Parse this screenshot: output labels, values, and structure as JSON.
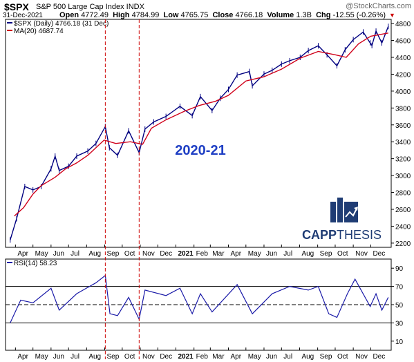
{
  "header": {
    "symbol": "$SPX",
    "name": "S&P 500 Large Cap Index INDX",
    "brand": "@StockCharts.com",
    "date": "31-Dec-2021",
    "open_label": "Open",
    "open": "4772.49",
    "high_label": "High",
    "high": "4784.99",
    "low_label": "Low",
    "low": "4765.75",
    "close_label": "Close",
    "close": "4766.18",
    "volume_label": "Volume",
    "volume": "1.3B",
    "chg_label": "Chg",
    "chg": "-12.55 (-0.26%)",
    "chg_arrow": "▼"
  },
  "legend": {
    "price": "$SPX (Daily) 4766.18 (31 Dec)",
    "ma": "MA(20) 4687.74",
    "rsi": "RSI(14) 58.23"
  },
  "annotation": "2020-21",
  "logo": {
    "text_bold": "CAPP",
    "text_light": "THESIS"
  },
  "colors": {
    "price": "#000080",
    "ma": "#d0021b",
    "rsi": "#1a1aa8",
    "annotation": "#1f3fc4",
    "logo": "#1f3c74",
    "vline": "#cc0000"
  },
  "chart_data": [
    {
      "type": "line",
      "panel": "price",
      "series": [
        {
          "name": "$SPX (Daily)",
          "style": "ohlc-bars",
          "color": "#000080",
          "x": [
            "2020-03-23",
            "2020-04-03",
            "2020-04-17",
            "2020-05-01",
            "2020-05-15",
            "2020-06-01",
            "2020-06-08",
            "2020-06-15",
            "2020-07-01",
            "2020-07-15",
            "2020-08-03",
            "2020-08-17",
            "2020-09-02",
            "2020-09-09",
            "2020-09-23",
            "2020-10-12",
            "2020-10-30",
            "2020-11-09",
            "2020-11-24",
            "2020-12-15",
            "2021-01-08",
            "2021-01-29",
            "2021-02-12",
            "2021-03-04",
            "2021-03-18",
            "2021-04-01",
            "2021-04-16",
            "2021-05-07",
            "2021-05-12",
            "2021-06-01",
            "2021-06-15",
            "2021-07-01",
            "2021-07-15",
            "2021-08-02",
            "2021-08-16",
            "2021-09-02",
            "2021-09-17",
            "2021-10-04",
            "2021-10-18",
            "2021-11-01",
            "2021-11-18",
            "2021-11-30",
            "2021-12-03",
            "2021-12-10",
            "2021-12-20",
            "2021-12-31"
          ],
          "values": [
            2237,
            2490,
            2870,
            2830,
            2870,
            3080,
            3230,
            3060,
            3110,
            3230,
            3290,
            3380,
            3580,
            3330,
            3240,
            3530,
            3270,
            3550,
            3635,
            3700,
            3820,
            3710,
            3935,
            3770,
            3915,
            4020,
            4190,
            4232,
            4063,
            4202,
            4246,
            4320,
            4360,
            4400,
            4480,
            4537,
            4430,
            4300,
            4490,
            4610,
            4700,
            4570,
            4540,
            4710,
            4570,
            4766
          ]
        },
        {
          "name": "MA(20)",
          "color": "#d0021b",
          "x": [
            "2020-03-30",
            "2020-04-15",
            "2020-05-01",
            "2020-05-15",
            "2020-06-08",
            "2020-06-26",
            "2020-07-15",
            "2020-08-03",
            "2020-08-31",
            "2020-09-20",
            "2020-10-15",
            "2020-11-05",
            "2020-11-20",
            "2020-12-15",
            "2021-01-15",
            "2021-02-10",
            "2021-03-10",
            "2021-04-01",
            "2021-05-01",
            "2021-06-01",
            "2021-07-01",
            "2021-08-02",
            "2021-09-02",
            "2021-10-01",
            "2021-10-20",
            "2021-11-10",
            "2021-12-01",
            "2021-12-31"
          ],
          "values": [
            2520,
            2620,
            2780,
            2880,
            2980,
            3080,
            3150,
            3240,
            3420,
            3380,
            3400,
            3370,
            3560,
            3660,
            3760,
            3830,
            3880,
            3950,
            4120,
            4170,
            4260,
            4390,
            4470,
            4430,
            4400,
            4560,
            4650,
            4688
          ]
        }
      ],
      "ylim": [
        2150,
        4850
      ],
      "yticks": [
        2200,
        2400,
        2600,
        2800,
        3000,
        3200,
        3400,
        3600,
        3800,
        4000,
        4200,
        4400,
        4600,
        4800
      ],
      "xlabels": [
        "Apr",
        "May",
        "Jun",
        "Jul",
        "Aug",
        "Sep",
        "Oct",
        "Nov",
        "Dec",
        "2021",
        "Feb",
        "Mar",
        "Apr",
        "May",
        "Jun",
        "Jul",
        "Aug",
        "Sep",
        "Oct",
        "Nov",
        "Dec"
      ],
      "vlines": [
        "2020-09-02",
        "2020-10-30"
      ],
      "grid": false
    },
    {
      "type": "line",
      "panel": "rsi",
      "series": [
        {
          "name": "RSI(14)",
          "color": "#1a1aa8",
          "x": [
            "2020-03-23",
            "2020-04-10",
            "2020-05-01",
            "2020-06-01",
            "2020-06-15",
            "2020-07-15",
            "2020-08-17",
            "2020-09-02",
            "2020-09-10",
            "2020-09-23",
            "2020-10-12",
            "2020-10-30",
            "2020-11-09",
            "2020-12-15",
            "2021-01-08",
            "2021-01-29",
            "2021-02-12",
            "2021-03-04",
            "2021-04-16",
            "2021-05-12",
            "2021-06-15",
            "2021-07-15",
            "2021-08-16",
            "2021-09-02",
            "2021-09-20",
            "2021-10-04",
            "2021-10-22",
            "2021-11-04",
            "2021-11-30",
            "2021-12-10",
            "2021-12-20",
            "2021-12-31"
          ],
          "values": [
            30,
            55,
            52,
            68,
            44,
            62,
            74,
            82,
            40,
            38,
            58,
            34,
            66,
            60,
            68,
            40,
            62,
            42,
            72,
            40,
            62,
            70,
            66,
            70,
            40,
            36,
            62,
            78,
            48,
            62,
            44,
            58
          ]
        }
      ],
      "ylim": [
        0,
        100
      ],
      "yticks": [
        10,
        30,
        50,
        70,
        90
      ],
      "hlines": [
        30,
        50,
        70
      ],
      "xlabels": [
        "Apr",
        "May",
        "Jun",
        "Jul",
        "Aug",
        "Sep",
        "Oct",
        "Nov",
        "Dec",
        "2021",
        "Feb",
        "Mar",
        "Apr",
        "May",
        "Jun",
        "Jul",
        "Aug",
        "Sep",
        "Oct",
        "Nov",
        "Dec"
      ],
      "vlines": [
        "2020-09-02",
        "2020-10-30"
      ]
    }
  ]
}
